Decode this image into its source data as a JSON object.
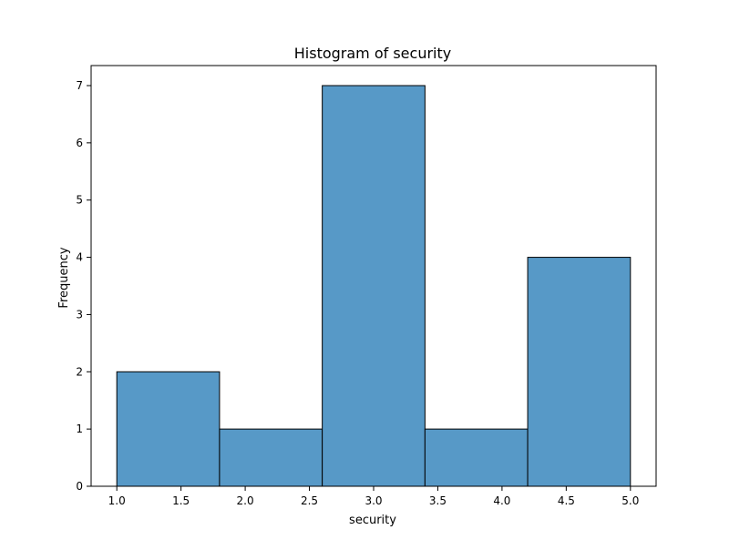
{
  "chart_data": {
    "type": "bar",
    "title": "Histogram of security",
    "xlabel": "security",
    "ylabel": "Frequency",
    "bins": [
      {
        "x0": 1.0,
        "x1": 1.8,
        "count": 2
      },
      {
        "x0": 1.8,
        "x1": 2.6,
        "count": 1
      },
      {
        "x0": 2.6,
        "x1": 3.4,
        "count": 7
      },
      {
        "x0": 3.4,
        "x1": 4.2,
        "count": 1
      },
      {
        "x0": 4.2,
        "x1": 5.0,
        "count": 4
      }
    ],
    "xlim": [
      0.8,
      5.2
    ],
    "ylim": [
      0,
      7.35
    ],
    "xticks": [
      "1.0",
      "1.5",
      "2.0",
      "2.5",
      "3.0",
      "3.5",
      "4.0",
      "4.5",
      "5.0"
    ],
    "yticks": [
      "0",
      "1",
      "2",
      "3",
      "4",
      "5",
      "6",
      "7"
    ],
    "grid": false,
    "legend": false,
    "colors": {
      "bar_fill": "#5799c7",
      "bar_edge": "#000000",
      "axes": "#000000",
      "background": "#ffffff"
    }
  }
}
